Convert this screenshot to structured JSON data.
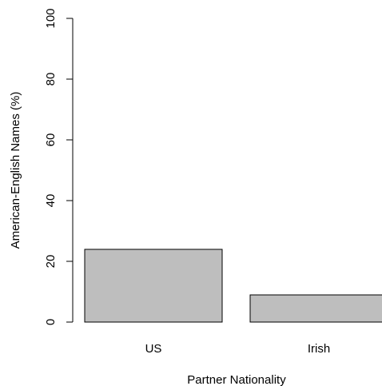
{
  "chart_data": {
    "type": "bar",
    "title": "",
    "xlabel": "Partner Nationality",
    "ylabel": "American-English Names (%)",
    "categories": [
      "US",
      "Irish"
    ],
    "values": [
      24,
      9
    ],
    "ylim": [
      0,
      100
    ],
    "yticks": [
      "0",
      "20",
      "40",
      "60",
      "80",
      "100"
    ],
    "grid": false,
    "legend": "none",
    "bar_color": "#bebebe",
    "border_color": "#000000"
  }
}
